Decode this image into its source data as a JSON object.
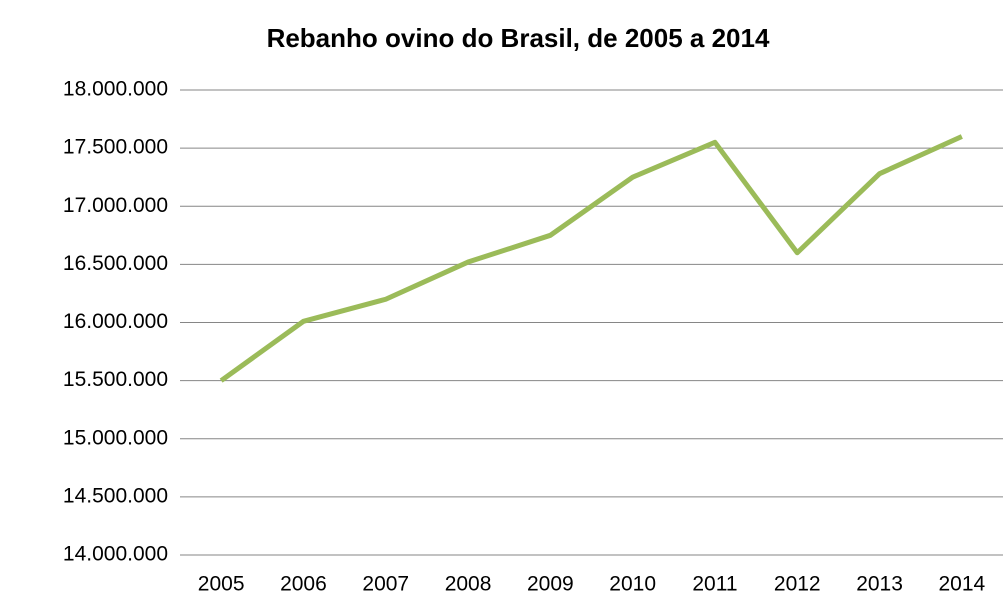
{
  "chart_data": {
    "type": "line",
    "title": "Rebanho ovino do Brasil, de 2005 a 2014",
    "categories": [
      "2005",
      "2006",
      "2007",
      "2008",
      "2009",
      "2010",
      "2011",
      "2012",
      "2013",
      "2014"
    ],
    "series": [
      {
        "name": "Rebanho ovino",
        "color": "#9bbb59",
        "values": [
          15500000,
          16010000,
          16200000,
          16520000,
          16750000,
          17250000,
          17550000,
          16600000,
          17280000,
          17600000
        ]
      }
    ],
    "ylim": [
      14000000,
      18000000
    ],
    "yticks": [
      {
        "value": 14000000,
        "label": "14.000.000"
      },
      {
        "value": 14500000,
        "label": "14.500.000"
      },
      {
        "value": 15000000,
        "label": "15.000.000"
      },
      {
        "value": 15500000,
        "label": "15.500.000"
      },
      {
        "value": 16000000,
        "label": "16.000.000"
      },
      {
        "value": 16500000,
        "label": "16.500.000"
      },
      {
        "value": 17000000,
        "label": "17.000.000"
      },
      {
        "value": 17500000,
        "label": "17.500.000"
      },
      {
        "value": 18000000,
        "label": "18.000.000"
      }
    ],
    "grid": true,
    "legend": false
  }
}
